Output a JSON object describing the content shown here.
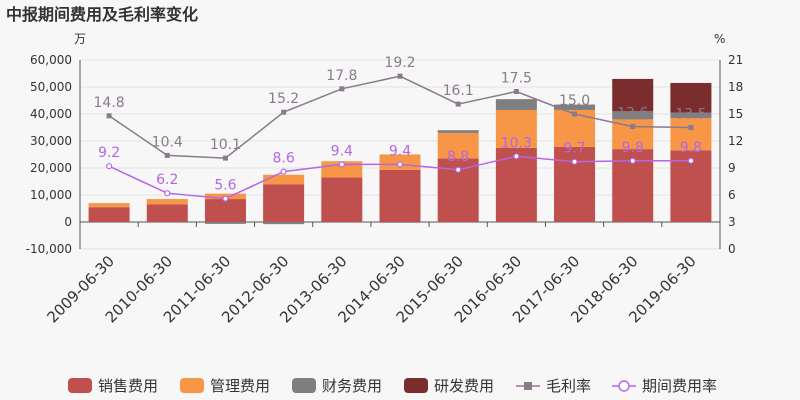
{
  "chart_data": {
    "type": "bar",
    "title": "中报期间费用及毛利率变化",
    "y_left_unit": "万",
    "y_right_unit": "%",
    "ylim_left": [
      -10000,
      60000
    ],
    "yticks_left": [
      "-10,000",
      "0",
      "10,000",
      "20,000",
      "30,000",
      "40,000",
      "50,000",
      "60,000"
    ],
    "ylim_right": [
      0,
      21
    ],
    "yticks_right": [
      "0",
      "3",
      "6",
      "9",
      "12",
      "15",
      "18",
      "21"
    ],
    "categories": [
      "2009-06-30",
      "2010-06-30",
      "2011-06-30",
      "2012-06-30",
      "2013-06-30",
      "2014-06-30",
      "2015-06-30",
      "2016-06-30",
      "2017-06-30",
      "2018-06-30",
      "2019-06-30"
    ],
    "bar_series": [
      {
        "name": "销售费用",
        "color": "#c0504d",
        "values": [
          5500,
          6500,
          8500,
          14000,
          16500,
          19300,
          23500,
          27500,
          27800,
          27000,
          26500
        ]
      },
      {
        "name": "管理费用",
        "color": "#f79646",
        "values": [
          1500,
          2000,
          2000,
          3500,
          6000,
          5700,
          9500,
          14000,
          13700,
          11000,
          12000
        ]
      },
      {
        "name": "财务费用",
        "color": "#7f7f7f",
        "values": [
          0,
          0,
          -700,
          -800,
          0,
          -300,
          1000,
          4000,
          2000,
          3000,
          2000
        ]
      },
      {
        "name": "研发费用",
        "color": "#7b2c2c",
        "values": [
          0,
          0,
          0,
          0,
          0,
          0,
          0,
          0,
          0,
          12000,
          11000
        ]
      }
    ],
    "line_series": [
      {
        "name": "毛利率",
        "color": "#8a7a8c",
        "marker": "square",
        "values": [
          14.8,
          10.4,
          10.1,
          15.2,
          17.8,
          19.2,
          16.1,
          17.5,
          15.0,
          13.6,
          13.5
        ],
        "labels": [
          "14.8",
          "10.4",
          "10.1",
          "15.2",
          "17.8",
          "19.2",
          "16.1",
          "17.5",
          "15.0",
          "13.6",
          "13.5"
        ]
      },
      {
        "name": "期间费用率",
        "color": "#b466e6",
        "marker": "circle",
        "values": [
          9.2,
          6.2,
          5.6,
          8.6,
          9.4,
          9.4,
          8.8,
          10.3,
          9.7,
          9.8,
          9.8
        ],
        "labels": [
          "9.2",
          "6.2",
          "5.6",
          "8.6",
          "9.4",
          "9.4",
          "8.8",
          "10.3",
          "9.7",
          "9.8",
          "9.8"
        ]
      }
    ],
    "legend": {
      "placement": "bottom"
    }
  }
}
